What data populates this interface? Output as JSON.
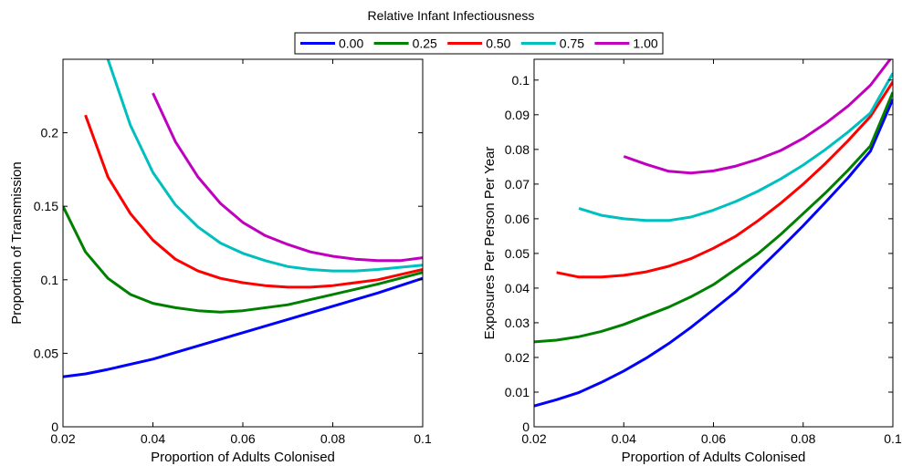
{
  "legend": {
    "title": "Relative Infant Infectiousness",
    "placement": "top-center"
  },
  "chart_data": [
    {
      "type": "line",
      "xlabel": "Proportion of Adults Colonised",
      "ylabel": "Proportion of Transmission",
      "xlim": [
        0.02,
        0.1
      ],
      "ylim": [
        0,
        0.25
      ],
      "xticks": [
        "0.02",
        "0.04",
        "0.06",
        "0.08",
        "0.1"
      ],
      "yticks": [
        "0",
        "0.05",
        "0.1",
        "0.15",
        "0.2"
      ],
      "ytick_values": [
        0,
        0.05,
        0.1,
        0.15,
        0.2
      ],
      "grid": false,
      "series": [
        {
          "name": "0.00",
          "color": "#0000ff",
          "x": [
            0.02,
            0.025,
            0.03,
            0.04,
            0.05,
            0.06,
            0.07,
            0.08,
            0.09,
            0.1
          ],
          "y": [
            0.034,
            0.036,
            0.039,
            0.046,
            0.055,
            0.064,
            0.073,
            0.082,
            0.091,
            0.101
          ]
        },
        {
          "name": "0.25",
          "color": "#008000",
          "x": [
            0.02,
            0.025,
            0.03,
            0.035,
            0.04,
            0.045,
            0.05,
            0.055,
            0.06,
            0.07,
            0.08,
            0.09,
            0.1
          ],
          "y": [
            0.15,
            0.119,
            0.101,
            0.09,
            0.084,
            0.081,
            0.079,
            0.078,
            0.079,
            0.083,
            0.09,
            0.097,
            0.105
          ]
        },
        {
          "name": "0.50",
          "color": "#ff0000",
          "x": [
            0.025,
            0.03,
            0.035,
            0.04,
            0.045,
            0.05,
            0.055,
            0.06,
            0.065,
            0.07,
            0.075,
            0.08,
            0.09,
            0.1
          ],
          "y": [
            0.212,
            0.17,
            0.145,
            0.127,
            0.114,
            0.106,
            0.101,
            0.098,
            0.096,
            0.095,
            0.095,
            0.096,
            0.1,
            0.107
          ]
        },
        {
          "name": "0.75",
          "color": "#00bfbf",
          "x": [
            0.03,
            0.035,
            0.04,
            0.045,
            0.05,
            0.055,
            0.06,
            0.065,
            0.07,
            0.075,
            0.08,
            0.085,
            0.09,
            0.1
          ],
          "y": [
            0.25,
            0.205,
            0.173,
            0.151,
            0.136,
            0.125,
            0.118,
            0.113,
            0.109,
            0.107,
            0.106,
            0.106,
            0.107,
            0.11
          ]
        },
        {
          "name": "1.00",
          "color": "#bf00bf",
          "x": [
            0.04,
            0.045,
            0.05,
            0.055,
            0.06,
            0.065,
            0.07,
            0.075,
            0.08,
            0.085,
            0.09,
            0.095,
            0.1
          ],
          "y": [
            0.227,
            0.194,
            0.17,
            0.152,
            0.139,
            0.13,
            0.124,
            0.119,
            0.116,
            0.114,
            0.113,
            0.113,
            0.115
          ]
        }
      ]
    },
    {
      "type": "line",
      "xlabel": "Proportion of Adults Colonised",
      "ylabel": "Exposures Per Person Per Year",
      "xlim": [
        0.02,
        0.1
      ],
      "ylim": [
        0,
        0.106
      ],
      "xticks": [
        "0.02",
        "0.04",
        "0.06",
        "0.08",
        "0.1"
      ],
      "yticks": [
        "0",
        "0.01",
        "0.02",
        "0.03",
        "0.04",
        "0.05",
        "0.06",
        "0.07",
        "0.08",
        "0.09",
        "0.1"
      ],
      "ytick_values": [
        0,
        0.01,
        0.02,
        0.03,
        0.04,
        0.05,
        0.06,
        0.07,
        0.08,
        0.09,
        0.1
      ],
      "grid": false,
      "series": [
        {
          "name": "0.00",
          "color": "#0000ff",
          "x": [
            0.02,
            0.025,
            0.03,
            0.035,
            0.04,
            0.045,
            0.05,
            0.055,
            0.06,
            0.065,
            0.07,
            0.075,
            0.08,
            0.085,
            0.09,
            0.095,
            0.1
          ],
          "y": [
            0.006,
            0.0078,
            0.0099,
            0.0128,
            0.0161,
            0.0198,
            0.024,
            0.0287,
            0.0338,
            0.039,
            0.0452,
            0.0515,
            0.058,
            0.0648,
            0.0718,
            0.0795,
            0.0945
          ]
        },
        {
          "name": "0.25",
          "color": "#008000",
          "x": [
            0.02,
            0.025,
            0.03,
            0.035,
            0.04,
            0.045,
            0.05,
            0.055,
            0.06,
            0.065,
            0.07,
            0.075,
            0.08,
            0.085,
            0.09,
            0.095,
            0.1
          ],
          "y": [
            0.0245,
            0.025,
            0.026,
            0.0275,
            0.0295,
            0.032,
            0.0345,
            0.0375,
            0.041,
            0.0455,
            0.05,
            0.0555,
            0.0615,
            0.0675,
            0.074,
            0.081,
            0.0965
          ]
        },
        {
          "name": "0.50",
          "color": "#ff0000",
          "x": [
            0.025,
            0.03,
            0.035,
            0.04,
            0.045,
            0.05,
            0.055,
            0.06,
            0.065,
            0.07,
            0.075,
            0.08,
            0.085,
            0.09,
            0.095,
            0.1
          ],
          "y": [
            0.0445,
            0.0432,
            0.0432,
            0.0437,
            0.0447,
            0.0463,
            0.0485,
            0.0515,
            0.055,
            0.0595,
            0.0645,
            0.07,
            0.076,
            0.0825,
            0.0895,
            0.0995
          ]
        },
        {
          "name": "0.75",
          "color": "#00bfbf",
          "x": [
            0.03,
            0.035,
            0.04,
            0.045,
            0.05,
            0.055,
            0.06,
            0.065,
            0.07,
            0.075,
            0.08,
            0.085,
            0.09,
            0.095,
            0.1
          ],
          "y": [
            0.063,
            0.061,
            0.06,
            0.0595,
            0.0595,
            0.0605,
            0.0625,
            0.065,
            0.068,
            0.0715,
            0.0755,
            0.08,
            0.085,
            0.0905,
            0.102
          ]
        },
        {
          "name": "1.00",
          "color": "#bf00bf",
          "x": [
            0.04,
            0.045,
            0.05,
            0.055,
            0.06,
            0.065,
            0.07,
            0.075,
            0.08,
            0.085,
            0.09,
            0.095,
            0.1
          ],
          "y": [
            0.078,
            0.0757,
            0.0737,
            0.0732,
            0.0738,
            0.0752,
            0.0772,
            0.0797,
            0.0832,
            0.0875,
            0.0925,
            0.0985,
            0.107
          ]
        }
      ]
    }
  ]
}
